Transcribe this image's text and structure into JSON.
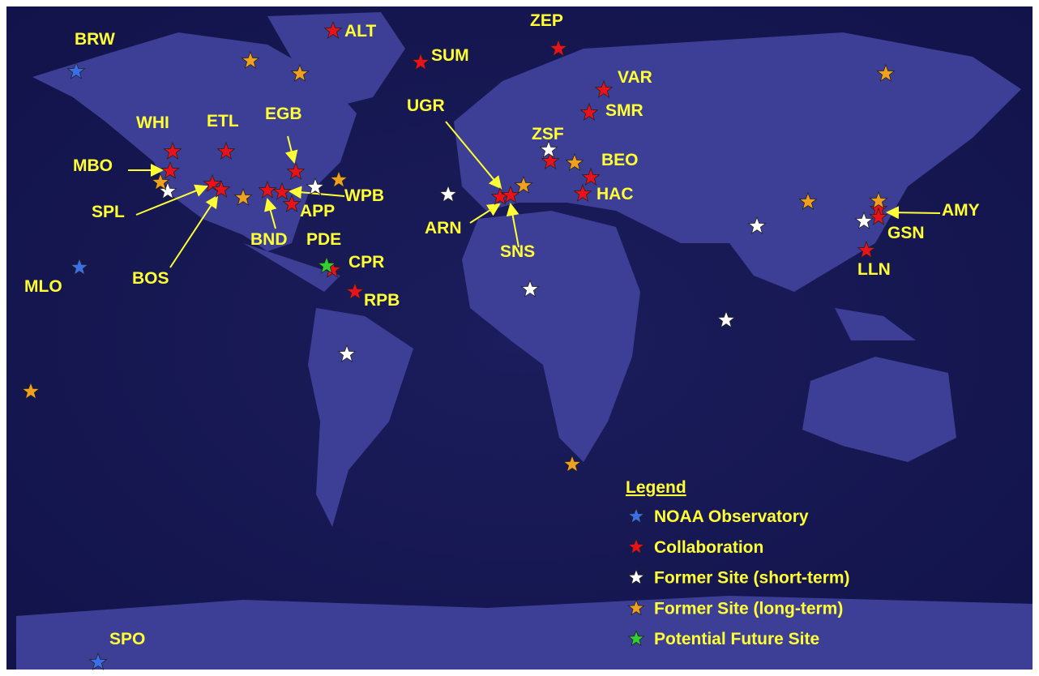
{
  "sites": [
    "BRW",
    "ALT",
    "SUM",
    "ZEP",
    "VAR",
    "SMR",
    "UGR",
    "WHI",
    "ETL",
    "EGB",
    "MBO",
    "ZSF",
    "BEO",
    "SPL",
    "WPB",
    "APP",
    "HAC",
    "AMY",
    "GSN",
    "ARN",
    "BND",
    "PDE",
    "SNS",
    "BOS",
    "CPR",
    "LLN",
    "MLO",
    "RPB",
    "SPO"
  ],
  "legend": {
    "title": "Legend",
    "items": [
      {
        "label": "NOAA Observatory",
        "color": "#3a6fe8"
      },
      {
        "label": "Collaboration",
        "color": "#e8121a"
      },
      {
        "label": "Former Site (short-term)",
        "color": "#ffffff"
      },
      {
        "label": "Former Site (long-term)",
        "color": "#f0a020"
      },
      {
        "label": "Potential Future Site",
        "color": "#30d030"
      }
    ]
  }
}
